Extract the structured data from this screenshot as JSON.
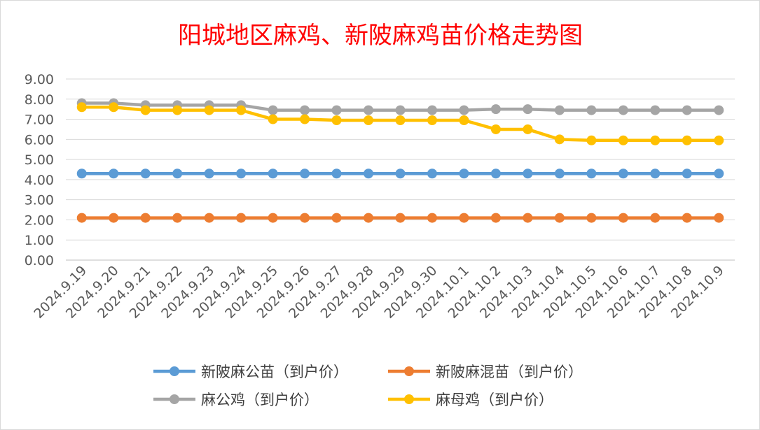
{
  "chart_data": {
    "type": "line",
    "title": "阳城地区麻鸡、新陂麻鸡苗价格走势图",
    "xlabel": "",
    "ylabel": "",
    "ylim": [
      0,
      9
    ],
    "y_ticks": [
      "0.00",
      "1.00",
      "2.00",
      "3.00",
      "4.00",
      "5.00",
      "6.00",
      "7.00",
      "8.00",
      "9.00"
    ],
    "grid": true,
    "legend_position": "bottom",
    "categories": [
      "2024.9.19",
      "2024.9.20",
      "2024.9.21",
      "2024.9.22",
      "2024.9.23",
      "2024.9.24",
      "2024.9.25",
      "2024.9.26",
      "2024.9.27",
      "2024.9.28",
      "2024.9.29",
      "2024.9.30",
      "2024.10.1",
      "2024.10.2",
      "2024.10.3",
      "2024.10.4",
      "2024.10.5",
      "2024.10.6",
      "2024.10.7",
      "2024.10.8",
      "2024.10.9"
    ],
    "series": [
      {
        "name": "新陂麻公苗（到户价）",
        "color": "#5B9BD5",
        "values": [
          4.3,
          4.3,
          4.3,
          4.3,
          4.3,
          4.3,
          4.3,
          4.3,
          4.3,
          4.3,
          4.3,
          4.3,
          4.3,
          4.3,
          4.3,
          4.3,
          4.3,
          4.3,
          4.3,
          4.3,
          4.3
        ]
      },
      {
        "name": "新陂麻混苗（到户价）",
        "color": "#ED7D31",
        "values": [
          2.1,
          2.1,
          2.1,
          2.1,
          2.1,
          2.1,
          2.1,
          2.1,
          2.1,
          2.1,
          2.1,
          2.1,
          2.1,
          2.1,
          2.1,
          2.1,
          2.1,
          2.1,
          2.1,
          2.1,
          2.1
        ]
      },
      {
        "name": "麻公鸡（到户价）",
        "color": "#A5A5A5",
        "values": [
          7.8,
          7.8,
          7.7,
          7.7,
          7.7,
          7.7,
          7.45,
          7.45,
          7.45,
          7.45,
          7.45,
          7.45,
          7.45,
          7.5,
          7.5,
          7.45,
          7.45,
          7.45,
          7.45,
          7.45,
          7.45
        ]
      },
      {
        "name": "麻母鸡（到户价）",
        "color": "#FFC000",
        "values": [
          7.6,
          7.6,
          7.45,
          7.45,
          7.45,
          7.45,
          7.0,
          7.0,
          6.95,
          6.95,
          6.95,
          6.95,
          6.95,
          6.5,
          6.5,
          6.0,
          5.95,
          5.95,
          5.95,
          5.95,
          5.95
        ]
      }
    ]
  }
}
